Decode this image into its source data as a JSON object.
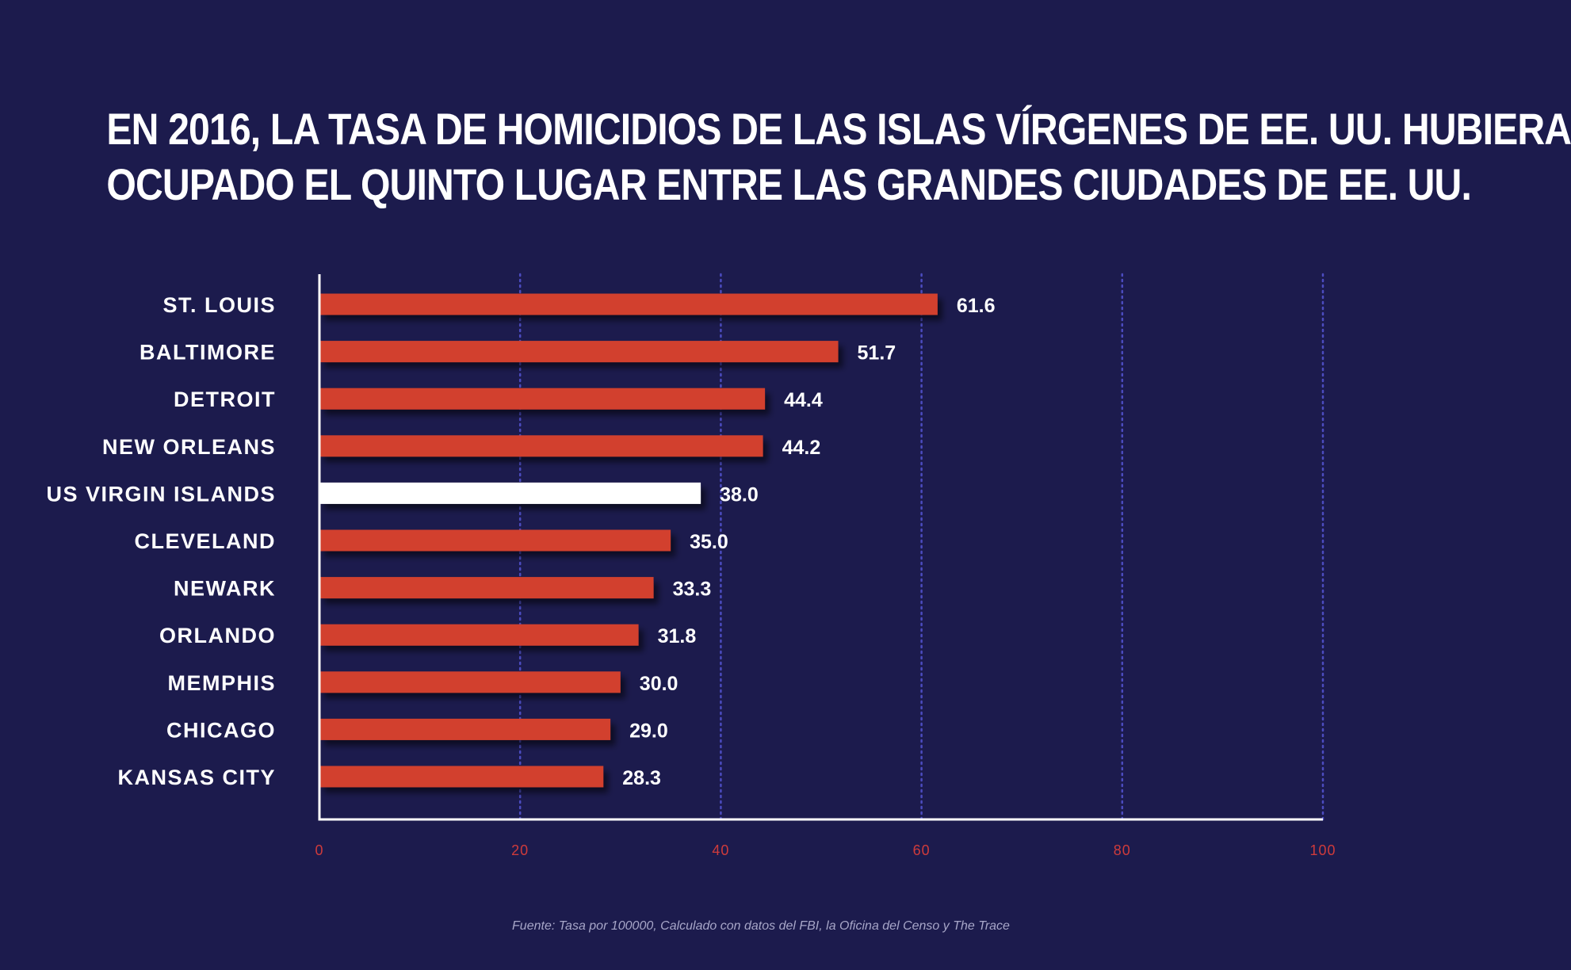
{
  "title": {
    "line1": "EN 2016, LA TASA DE HOMICIDIOS DE  LAS ISLAS VÍRGENES DE EE. UU. HUBIERA",
    "line2": "OCUPADO EL QUINTO LUGAR ENTRE LAS GRANDES CIUDADES DE EE. UU."
  },
  "source": "Fuente: Tasa por 100000, Calculado con datos del FBI, la Oficina del Censo y The Trace",
  "colors": {
    "background": "#1c1b4d",
    "bar": "#d2412f",
    "highlight_bar": "#ffffff",
    "gridline": "#4c4cc0",
    "tick_label": "#cf3b3b",
    "text": "#ffffff"
  },
  "chart_data": {
    "type": "bar",
    "orientation": "horizontal",
    "categories": [
      "ST. LOUIS",
      "BALTIMORE",
      "DETROIT",
      "NEW ORLEANS",
      "US VIRGIN ISLANDS",
      "CLEVELAND",
      "NEWARK",
      "ORLANDO",
      "MEMPHIS",
      "CHICAGO",
      "KANSAS CITY"
    ],
    "values": [
      61.6,
      51.7,
      44.4,
      44.2,
      38.0,
      35.0,
      33.3,
      31.8,
      30.0,
      29.0,
      28.3
    ],
    "value_labels": [
      "61.6",
      "51.7",
      "44.4",
      "44.2",
      "38.0",
      "35.0",
      "33.3",
      "31.8",
      "30.0",
      "29.0",
      "28.3"
    ],
    "highlight": "US VIRGIN ISLANDS",
    "xlim": [
      0,
      100
    ],
    "xticks": [
      0,
      20,
      40,
      60,
      80,
      100
    ],
    "xtick_labels": [
      "0",
      "20",
      "40",
      "60",
      "80",
      "100"
    ],
    "grid": "vertical-dotted"
  }
}
